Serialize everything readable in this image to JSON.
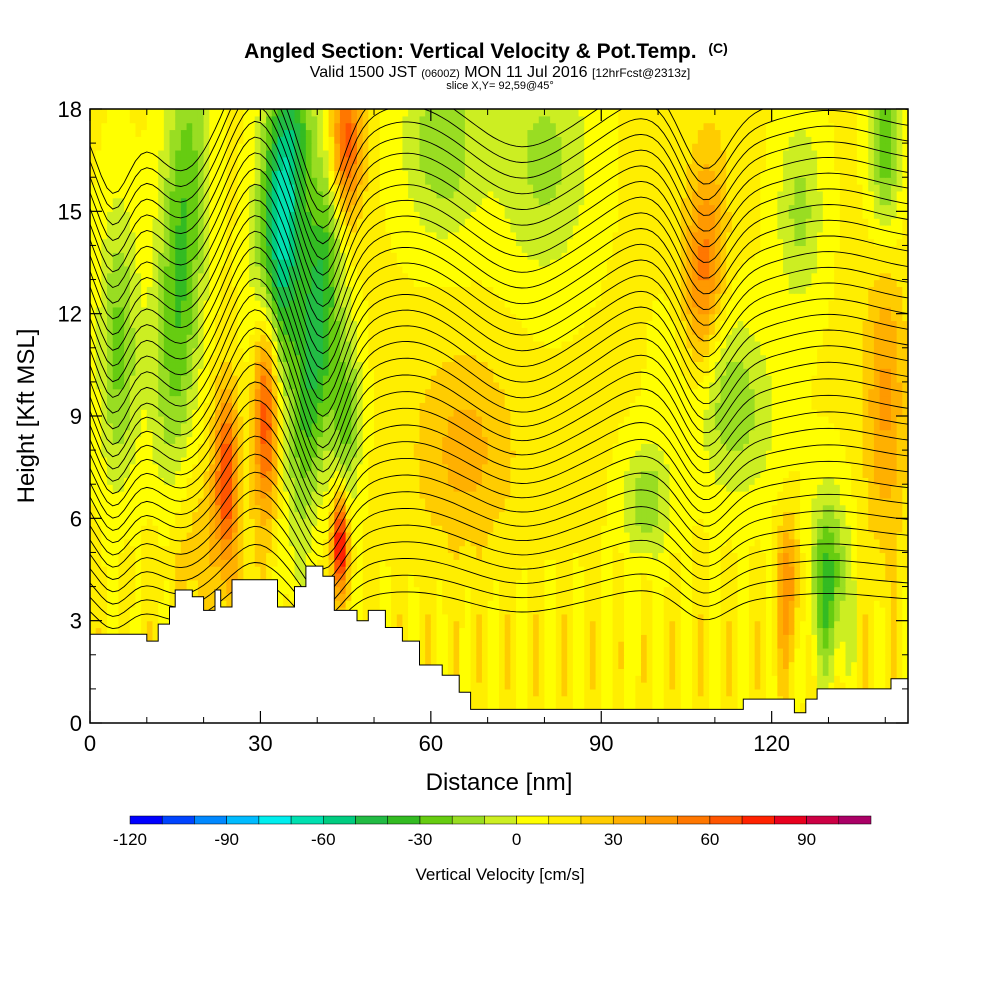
{
  "chart_data": {
    "type": "heatmap",
    "title": "Angled Section: Vertical Velocity & Pot.Temp.",
    "title_suffix": "(C)",
    "subtitle_prefix": "Valid 1500 JST",
    "subtitle_utc": "(0600Z)",
    "subtitle_date": "MON 11 Jul 2016",
    "subtitle_run": "[12hrFcst@2313z]",
    "slice_info": "slice X,Y= 92,59@45°",
    "xlabel": "Distance [nm]",
    "ylabel": "Height [Kft MSL]",
    "xlim": [
      0,
      144
    ],
    "ylim": [
      0,
      18
    ],
    "x_ticks": [
      0,
      30,
      60,
      90,
      120
    ],
    "x_tick_labels": [
      "0",
      "30",
      "60",
      "90",
      "120"
    ],
    "y_ticks": [
      0,
      3,
      6,
      9,
      12,
      15,
      18
    ],
    "y_tick_labels": [
      "0",
      "3",
      "6",
      "9",
      "12",
      "15",
      "18"
    ],
    "colorbar": {
      "label": "Vertical Velocity [cm/s]",
      "range": [
        -120,
        110
      ],
      "step": 10,
      "tick_values": [
        -120,
        -90,
        -60,
        -30,
        0,
        30,
        60,
        90
      ],
      "tick_labels": [
        "-120",
        "-90",
        "-60",
        "-30",
        "0",
        "30",
        "60",
        "90"
      ],
      "colors": [
        "#0000ff",
        "#0044ff",
        "#0088ff",
        "#00bbff",
        "#00eeee",
        "#00e0b0",
        "#00cc80",
        "#22bb44",
        "#33bb22",
        "#66cc11",
        "#99dd22",
        "#ccee22",
        "#ffff00",
        "#ffee00",
        "#ffcc00",
        "#ffb000",
        "#ff9900",
        "#ff7700",
        "#ff5500",
        "#ff2200",
        "#e8001e",
        "#cc0044",
        "#aa0066",
        "#880088",
        "#660099"
      ]
    },
    "terrain_kft": [
      [
        0,
        2.6
      ],
      [
        5,
        2.6
      ],
      [
        10,
        2.4
      ],
      [
        12,
        2.9
      ],
      [
        14,
        3.4
      ],
      [
        15,
        3.9
      ],
      [
        18,
        3.7
      ],
      [
        20,
        3.3
      ],
      [
        22,
        3.9
      ],
      [
        23,
        3.4
      ],
      [
        25,
        4.2
      ],
      [
        31,
        4.2
      ],
      [
        33,
        3.4
      ],
      [
        36,
        4.0
      ],
      [
        38,
        4.6
      ],
      [
        41,
        4.3
      ],
      [
        43,
        3.3
      ],
      [
        47,
        3.0
      ],
      [
        49,
        3.3
      ],
      [
        52,
        2.8
      ],
      [
        55,
        2.4
      ],
      [
        58,
        1.7
      ],
      [
        62,
        1.4
      ],
      [
        65,
        0.9
      ],
      [
        67,
        0.4
      ],
      [
        113,
        0.4
      ],
      [
        115,
        0.7
      ],
      [
        123,
        0.7
      ],
      [
        124,
        0.3
      ],
      [
        126,
        0.7
      ],
      [
        128,
        1.0
      ],
      [
        140,
        1.0
      ],
      [
        141,
        1.3
      ],
      [
        144,
        1.3
      ]
    ],
    "theta_levels": {
      "start_c": 30,
      "step_c": 1,
      "count": 32,
      "base_height_kft": 3.6,
      "spacing_kft": 0.46,
      "perturbations": [
        {
          "x": 4,
          "sigma": 3.0,
          "dz": -1.6
        },
        {
          "x": 16,
          "sigma": 5.0,
          "dz": -1.2
        },
        {
          "x": 29,
          "sigma": 4.0,
          "dz": 1.2
        },
        {
          "x": 41,
          "sigma": 3.5,
          "dz": -1.8
        },
        {
          "x": 56,
          "sigma": 7.0,
          "dz": 0.5
        },
        {
          "x": 76,
          "sigma": 7.0,
          "dz": -0.7
        },
        {
          "x": 98,
          "sigma": 6.0,
          "dz": 0.6
        },
        {
          "x": 108,
          "sigma": 4.0,
          "dz": -1.3
        },
        {
          "x": 130,
          "sigma": 8.0,
          "dz": 0.4
        }
      ]
    },
    "velocity_features": [
      {
        "x": 16,
        "z": 13.5,
        "sx": 3.0,
        "sz": 5.0,
        "w": -45,
        "tilt": 0.3
      },
      {
        "x": 5,
        "z": 11.0,
        "sx": 2.5,
        "sz": 3.0,
        "w": -35,
        "tilt": 0.0
      },
      {
        "x": 34,
        "z": 15.0,
        "sx": 3.0,
        "sz": 3.5,
        "w": -80,
        "tilt": 0.3
      },
      {
        "x": 40,
        "z": 11.5,
        "sx": 2.5,
        "sz": 4.0,
        "w": -55,
        "tilt": 0.5
      },
      {
        "x": 45,
        "z": 9.0,
        "sx": 2.0,
        "sz": 2.0,
        "w": -35,
        "tilt": 0.0
      },
      {
        "x": 31,
        "z": 9.3,
        "sx": 1.6,
        "sz": 2.2,
        "w": 70,
        "tilt": 0.0
      },
      {
        "x": 45,
        "z": 17.0,
        "sx": 2.0,
        "sz": 1.6,
        "w": 65,
        "tilt": 0.0
      },
      {
        "x": 24,
        "z": 7.3,
        "sx": 1.5,
        "sz": 1.8,
        "w": 55,
        "tilt": 0.0
      },
      {
        "x": 44,
        "z": 5.3,
        "sx": 1.0,
        "sz": 1.0,
        "w": 80,
        "tilt": 0.0
      },
      {
        "x": 62,
        "z": 17.0,
        "sx": 5.0,
        "sz": 2.0,
        "w": -30,
        "tilt": 0.0
      },
      {
        "x": 80,
        "z": 16.5,
        "sx": 6.0,
        "sz": 2.5,
        "w": -25,
        "tilt": 0.0
      },
      {
        "x": 108,
        "z": 13.0,
        "sx": 2.5,
        "sz": 2.5,
        "w": 45,
        "tilt": 0.2
      },
      {
        "x": 112,
        "z": 9.5,
        "sx": 6.0,
        "sz": 2.0,
        "w": -30,
        "tilt": -0.6
      },
      {
        "x": 98,
        "z": 6.5,
        "sx": 3.0,
        "sz": 1.2,
        "w": -30,
        "tilt": 0.0
      },
      {
        "x": 130,
        "z": 4.2,
        "sx": 2.5,
        "sz": 1.8,
        "w": -45,
        "tilt": 0.0
      },
      {
        "x": 140,
        "z": 17.0,
        "sx": 2.0,
        "sz": 2.0,
        "w": -40,
        "tilt": 0.0
      },
      {
        "x": 125,
        "z": 15.0,
        "sx": 3.0,
        "sz": 2.0,
        "w": -25,
        "tilt": 0.0
      },
      {
        "x": 140,
        "z": 9.5,
        "sx": 2.5,
        "sz": 3.0,
        "w": 30,
        "tilt": 0.0
      },
      {
        "x": 123,
        "z": 4.0,
        "sx": 1.5,
        "sz": 1.5,
        "w": 35,
        "tilt": 0.0
      },
      {
        "x": 66,
        "z": 8.0,
        "sx": 6.0,
        "sz": 2.0,
        "w": 22,
        "tilt": 0.0
      },
      {
        "x": 18,
        "z": 5.0,
        "sx": 6.0,
        "sz": 2.0,
        "w": 15,
        "tilt": 0.0
      }
    ],
    "background_w": 12
  }
}
